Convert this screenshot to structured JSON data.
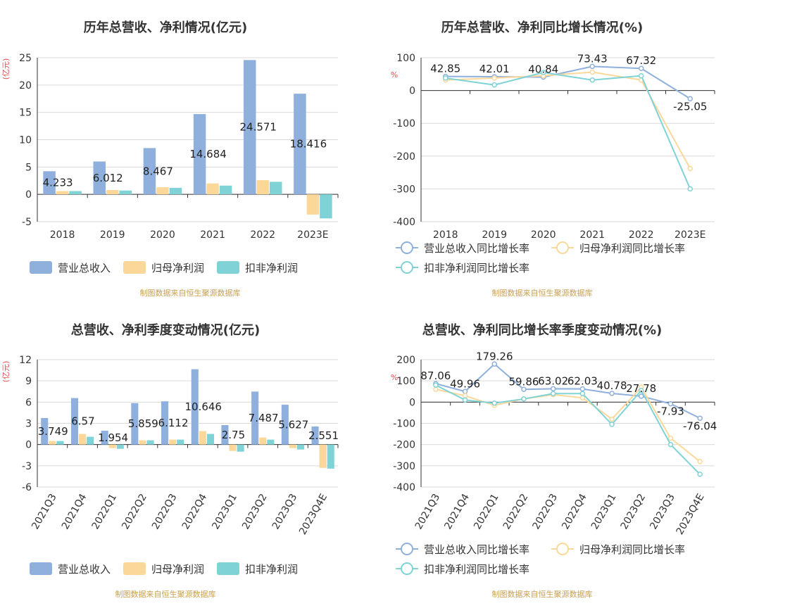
{
  "colors": {
    "revenue": "#8fb0dd",
    "netprofit": "#fbd89a",
    "deducted": "#7fd3d6",
    "source": "#c9a04f",
    "unit": "#e05050"
  },
  "chart_data": [
    {
      "id": "c1",
      "type": "bar",
      "title": "历年总营收、净利情况(亿元)",
      "ylabel": "(亿元)",
      "categories": [
        "2018",
        "2019",
        "2020",
        "2021",
        "2022",
        "2023E"
      ],
      "ylim": [
        -5,
        25
      ],
      "yticks": [
        -5,
        0,
        5,
        10,
        15,
        20,
        25
      ],
      "series": [
        {
          "name": "营业总收入",
          "color": "#8fb0dd",
          "values": [
            4.233,
            6.012,
            8.467,
            14.684,
            24.571,
            18.416
          ]
        },
        {
          "name": "归母净利润",
          "color": "#fbd89a",
          "values": [
            0.6,
            0.8,
            1.3,
            2.0,
            2.6,
            -3.7
          ]
        },
        {
          "name": "扣非净利润",
          "color": "#7fd3d6",
          "values": [
            0.6,
            0.7,
            1.2,
            1.6,
            2.3,
            -4.4
          ]
        }
      ],
      "data_labels": [
        "4.233",
        "6.012",
        "8.467",
        "14.684",
        "24.571",
        "18.416"
      ],
      "source": "制图数据来自恒生聚源数据库",
      "rotate_ticks": false
    },
    {
      "id": "c2",
      "type": "line",
      "title": "历年总营收、净利同比增长情况(%)",
      "ylabel": "%",
      "categories": [
        "2018",
        "2019",
        "2020",
        "2021",
        "2022",
        "2023E"
      ],
      "ylim": [
        -400,
        100
      ],
      "yticks": [
        -400,
        -300,
        -200,
        -100,
        0,
        100
      ],
      "series": [
        {
          "name": "营业总收入同比增长率",
          "color": "#8fb0dd",
          "values": [
            42.85,
            42.01,
            40.84,
            73.43,
            67.32,
            -25.05
          ]
        },
        {
          "name": "归母净利润同比增长率",
          "color": "#fbd89a",
          "values": [
            32,
            38,
            45,
            56,
            32,
            -238
          ]
        },
        {
          "name": "扣非净利润同比增长率",
          "color": "#7fd3d6",
          "values": [
            38,
            17,
            55,
            32,
            45,
            -300
          ]
        }
      ],
      "data_labels": [
        "42.85",
        "42.01",
        "40.84",
        "73.43",
        "67.32",
        "-25.05"
      ],
      "source": "制图数据来自恒生聚源数据库",
      "rotate_ticks": false
    },
    {
      "id": "c3",
      "type": "bar",
      "title": "总营收、净利季度变动情况(亿元)",
      "ylabel": "(亿元)",
      "categories": [
        "2021Q3",
        "2021Q4",
        "2022Q1",
        "2022Q2",
        "2022Q3",
        "2022Q4",
        "2023Q1",
        "2023Q2",
        "2023Q3",
        "2023Q4E"
      ],
      "ylim": [
        -6,
        12
      ],
      "yticks": [
        -6,
        -3,
        0,
        3,
        6,
        9,
        12
      ],
      "series": [
        {
          "name": "营业总收入",
          "color": "#8fb0dd",
          "values": [
            3.749,
            6.57,
            1.954,
            5.859,
            6.112,
            10.646,
            2.75,
            7.487,
            5.627,
            2.551
          ]
        },
        {
          "name": "归母净利润",
          "color": "#fbd89a",
          "values": [
            0.5,
            1.5,
            -0.5,
            0.6,
            0.7,
            1.9,
            -0.9,
            1.0,
            -0.5,
            -3.3
          ]
        },
        {
          "name": "扣非净利润",
          "color": "#7fd3d6",
          "values": [
            0.5,
            1.1,
            -0.6,
            0.6,
            0.7,
            1.5,
            -1.0,
            0.7,
            -0.7,
            -3.4
          ]
        }
      ],
      "data_labels": [
        "3.749",
        "6.57",
        "1.954",
        "5.859",
        "6.112",
        "10.646",
        "2.75",
        "7.487",
        "5.627",
        "2.551"
      ],
      "source": "制图数据来自恒生聚源数据库",
      "rotate_ticks": true
    },
    {
      "id": "c4",
      "type": "line",
      "title": "总营收、净利同比增长率季度变动情况(%)",
      "ylabel": "%",
      "categories": [
        "2021Q3",
        "2021Q4",
        "2022Q1",
        "2022Q2",
        "2022Q3",
        "2022Q4",
        "2023Q1",
        "2023Q2",
        "2023Q3",
        "2023Q4E"
      ],
      "ylim": [
        -400,
        200
      ],
      "yticks": [
        -400,
        -300,
        -200,
        -100,
        0,
        100,
        200
      ],
      "series": [
        {
          "name": "营业总收入同比增长率",
          "color": "#8fb0dd",
          "values": [
            87.06,
            49.96,
            179.26,
            59.86,
            63.02,
            62.03,
            40.78,
            27.78,
            -7.93,
            -76.04
          ]
        },
        {
          "name": "归母净利润同比增长率",
          "color": "#fbd89a",
          "values": [
            60,
            30,
            -15,
            15,
            35,
            20,
            -80,
            70,
            -170,
            -280
          ]
        },
        {
          "name": "扣非净利润同比增长率",
          "color": "#7fd3d6",
          "values": [
            80,
            10,
            -5,
            15,
            40,
            40,
            -105,
            55,
            -200,
            -340
          ]
        }
      ],
      "data_labels": [
        "87.06",
        "49.96",
        "179.26",
        "59.86",
        "63.02",
        "62.03",
        "40.78",
        "27.78",
        "-7.93",
        "-76.04"
      ],
      "source": "制图数据来自恒生聚源数据库",
      "rotate_ticks": true
    }
  ]
}
